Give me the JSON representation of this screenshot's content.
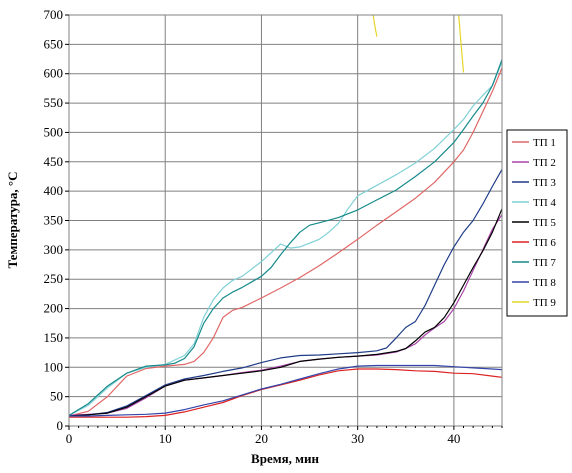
{
  "chart_data": {
    "type": "line",
    "title": "",
    "xlabel": "Время, мин",
    "ylabel": "Температура, °С",
    "xlim": [
      0,
      45
    ],
    "ylim": [
      0,
      700
    ],
    "x_ticks": [
      0,
      10,
      20,
      30,
      40
    ],
    "x_tick_labels": [
      "0",
      "10",
      "20",
      "30",
      "40"
    ],
    "y_ticks": [
      0,
      50,
      100,
      150,
      200,
      250,
      300,
      350,
      400,
      450,
      500,
      550,
      600,
      650,
      700
    ],
    "y_tick_labels": [
      "0",
      "50",
      "100",
      "150",
      "200",
      "250",
      "300",
      "350",
      "400",
      "450",
      "500",
      "550",
      "600",
      "650",
      "700"
    ],
    "grid": true,
    "legend_position": "right",
    "series": [
      {
        "name": "ТП 1",
        "color": "#e06666",
        "points": [
          [
            0,
            17
          ],
          [
            2,
            25
          ],
          [
            4,
            50
          ],
          [
            6,
            85
          ],
          [
            8,
            98
          ],
          [
            10,
            102
          ],
          [
            12,
            105
          ],
          [
            13,
            110
          ],
          [
            14,
            125
          ],
          [
            15,
            150
          ],
          [
            16,
            185
          ],
          [
            17,
            197
          ],
          [
            18,
            202
          ],
          [
            20,
            218
          ],
          [
            22,
            235
          ],
          [
            24,
            253
          ],
          [
            26,
            273
          ],
          [
            28,
            295
          ],
          [
            30,
            318
          ],
          [
            32,
            342
          ],
          [
            34,
            365
          ],
          [
            36,
            388
          ],
          [
            38,
            415
          ],
          [
            40,
            450
          ],
          [
            41,
            470
          ],
          [
            42,
            500
          ],
          [
            44,
            570
          ],
          [
            45,
            610
          ]
        ]
      },
      {
        "name": "ТП 2",
        "color": "#aa44aa",
        "points": [
          [
            0,
            18
          ],
          [
            2,
            20
          ],
          [
            4,
            22
          ],
          [
            6,
            30
          ],
          [
            8,
            48
          ],
          [
            10,
            68
          ],
          [
            12,
            78
          ],
          [
            14,
            82
          ],
          [
            16,
            86
          ],
          [
            18,
            91
          ],
          [
            20,
            95
          ],
          [
            22,
            102
          ],
          [
            24,
            110
          ],
          [
            26,
            114
          ],
          [
            28,
            117
          ],
          [
            30,
            119
          ],
          [
            32,
            121
          ],
          [
            34,
            126
          ],
          [
            35,
            132
          ],
          [
            36,
            140
          ],
          [
            37,
            155
          ],
          [
            38,
            167
          ],
          [
            39,
            178
          ],
          [
            40,
            200
          ],
          [
            41,
            230
          ],
          [
            42,
            265
          ],
          [
            43,
            300
          ],
          [
            44,
            335
          ],
          [
            45,
            360
          ]
        ]
      },
      {
        "name": "ТП 3",
        "color": "#1f3c88",
        "points": [
          [
            0,
            17
          ],
          [
            2,
            19
          ],
          [
            4,
            23
          ],
          [
            6,
            34
          ],
          [
            8,
            52
          ],
          [
            10,
            70
          ],
          [
            12,
            80
          ],
          [
            14,
            86
          ],
          [
            16,
            93
          ],
          [
            18,
            99
          ],
          [
            20,
            108
          ],
          [
            22,
            116
          ],
          [
            24,
            120
          ],
          [
            26,
            121
          ],
          [
            28,
            123
          ],
          [
            30,
            125
          ],
          [
            32,
            128
          ],
          [
            33,
            133
          ],
          [
            34,
            150
          ],
          [
            35,
            168
          ],
          [
            36,
            178
          ],
          [
            37,
            205
          ],
          [
            38,
            240
          ],
          [
            39,
            275
          ],
          [
            40,
            305
          ],
          [
            41,
            330
          ],
          [
            42,
            350
          ],
          [
            43,
            378
          ],
          [
            44,
            408
          ],
          [
            45,
            437
          ]
        ]
      },
      {
        "name": "ТП 4",
        "color": "#7fd0d6",
        "points": [
          [
            0,
            18
          ],
          [
            2,
            35
          ],
          [
            4,
            65
          ],
          [
            6,
            90
          ],
          [
            8,
            100
          ],
          [
            10,
            105
          ],
          [
            12,
            120
          ],
          [
            13,
            140
          ],
          [
            14,
            185
          ],
          [
            15,
            215
          ],
          [
            16,
            235
          ],
          [
            17,
            248
          ],
          [
            18,
            255
          ],
          [
            20,
            280
          ],
          [
            21,
            295
          ],
          [
            22,
            310
          ],
          [
            23,
            303
          ],
          [
            24,
            305
          ],
          [
            26,
            318
          ],
          [
            27,
            330
          ],
          [
            28,
            345
          ],
          [
            29,
            370
          ],
          [
            30,
            392
          ],
          [
            32,
            410
          ],
          [
            34,
            428
          ],
          [
            36,
            448
          ],
          [
            38,
            473
          ],
          [
            40,
            505
          ],
          [
            41,
            522
          ],
          [
            42,
            545
          ],
          [
            43,
            563
          ],
          [
            44,
            580
          ],
          [
            45,
            620
          ]
        ]
      },
      {
        "name": "ТП 5",
        "color": "#000000",
        "points": [
          [
            0,
            17
          ],
          [
            2,
            19
          ],
          [
            4,
            22
          ],
          [
            6,
            32
          ],
          [
            8,
            50
          ],
          [
            10,
            68
          ],
          [
            12,
            78
          ],
          [
            14,
            82
          ],
          [
            16,
            86
          ],
          [
            18,
            90
          ],
          [
            20,
            94
          ],
          [
            22,
            100
          ],
          [
            24,
            110
          ],
          [
            26,
            114
          ],
          [
            28,
            117
          ],
          [
            30,
            119
          ],
          [
            32,
            122
          ],
          [
            34,
            127
          ],
          [
            35,
            132
          ],
          [
            36,
            145
          ],
          [
            37,
            160
          ],
          [
            38,
            168
          ],
          [
            39,
            185
          ],
          [
            40,
            210
          ],
          [
            41,
            240
          ],
          [
            42,
            270
          ],
          [
            43,
            298
          ],
          [
            44,
            330
          ],
          [
            45,
            370
          ]
        ]
      },
      {
        "name": "ТП 6",
        "color": "#dd2222",
        "points": [
          [
            0,
            15
          ],
          [
            2,
            15
          ],
          [
            4,
            15
          ],
          [
            6,
            15
          ],
          [
            8,
            16
          ],
          [
            10,
            18
          ],
          [
            12,
            24
          ],
          [
            14,
            32
          ],
          [
            16,
            40
          ],
          [
            18,
            52
          ],
          [
            20,
            62
          ],
          [
            22,
            70
          ],
          [
            24,
            78
          ],
          [
            26,
            87
          ],
          [
            28,
            94
          ],
          [
            30,
            97
          ],
          [
            32,
            97
          ],
          [
            34,
            96
          ],
          [
            36,
            94
          ],
          [
            38,
            93
          ],
          [
            40,
            90
          ],
          [
            42,
            89
          ],
          [
            44,
            85
          ],
          [
            45,
            83
          ]
        ]
      },
      {
        "name": "ТП 7",
        "color": "#168a8a",
        "points": [
          [
            0,
            18
          ],
          [
            2,
            38
          ],
          [
            4,
            68
          ],
          [
            6,
            90
          ],
          [
            8,
            102
          ],
          [
            10,
            104
          ],
          [
            11,
            107
          ],
          [
            12,
            115
          ],
          [
            13,
            135
          ],
          [
            14,
            175
          ],
          [
            15,
            200
          ],
          [
            16,
            218
          ],
          [
            17,
            228
          ],
          [
            18,
            236
          ],
          [
            20,
            255
          ],
          [
            21,
            270
          ],
          [
            22,
            292
          ],
          [
            23,
            312
          ],
          [
            24,
            330
          ],
          [
            25,
            342
          ],
          [
            26,
            346
          ],
          [
            28,
            355
          ],
          [
            30,
            368
          ],
          [
            32,
            385
          ],
          [
            34,
            402
          ],
          [
            36,
            425
          ],
          [
            38,
            450
          ],
          [
            40,
            483
          ],
          [
            41,
            505
          ],
          [
            42,
            528
          ],
          [
            43,
            550
          ],
          [
            44,
            580
          ],
          [
            45,
            624
          ]
        ]
      },
      {
        "name": "ТП 8",
        "color": "#3344aa",
        "points": [
          [
            0,
            17
          ],
          [
            2,
            17
          ],
          [
            4,
            18
          ],
          [
            6,
            19
          ],
          [
            8,
            20
          ],
          [
            10,
            22
          ],
          [
            12,
            28
          ],
          [
            14,
            36
          ],
          [
            16,
            43
          ],
          [
            18,
            53
          ],
          [
            20,
            63
          ],
          [
            22,
            71
          ],
          [
            24,
            80
          ],
          [
            26,
            89
          ],
          [
            28,
            97
          ],
          [
            30,
            102
          ],
          [
            32,
            103
          ],
          [
            34,
            103
          ],
          [
            36,
            103
          ],
          [
            38,
            103
          ],
          [
            40,
            101
          ],
          [
            42,
            99
          ],
          [
            44,
            97
          ],
          [
            45,
            96
          ]
        ]
      },
      {
        "name": "ТП 9",
        "color": "#e6d52a",
        "segments": [
          [
            [
              31.6,
              700
            ],
            [
              31.8,
              680
            ],
            [
              32.0,
              663
            ]
          ],
          [
            [
              40.5,
              700
            ],
            [
              40.7,
              660
            ],
            [
              41.0,
              602
            ]
          ]
        ]
      }
    ]
  }
}
